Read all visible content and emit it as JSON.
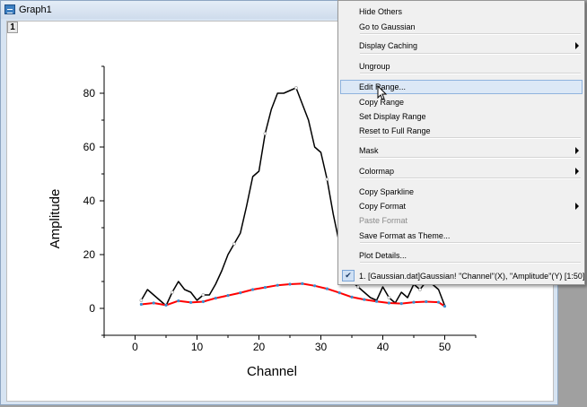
{
  "window": {
    "title": "Graph1",
    "layer_label": "1"
  },
  "plot": {
    "xlabel": "Channel",
    "ylabel": "Amplitude",
    "x_ticks": [
      "0",
      "10",
      "20",
      "30",
      "40",
      "50"
    ],
    "y_ticks": [
      "0",
      "20",
      "40",
      "60",
      "80"
    ],
    "colors": {
      "data_line": "#000000",
      "fit_line": "#ff0000",
      "fit_point": "#3a8fd0"
    }
  },
  "context_menu": {
    "items": [
      {
        "label": "Hide Others"
      },
      {
        "label": "Go to Gaussian"
      },
      {
        "label": "Display Caching",
        "submenu": true
      },
      {
        "label": "Ungroup"
      },
      {
        "label": "Edit Range...",
        "hover": true
      },
      {
        "label": "Copy Range"
      },
      {
        "label": "Set Display Range"
      },
      {
        "label": "Reset to Full Range"
      },
      {
        "label": "Mask",
        "submenu": true
      },
      {
        "label": "Colormap",
        "submenu": true
      },
      {
        "label": "Copy Sparkline"
      },
      {
        "label": "Copy Format",
        "submenu": true
      },
      {
        "label": "Paste Format",
        "disabled": true
      },
      {
        "label": "Save Format as Theme..."
      },
      {
        "label": "Plot Details..."
      },
      {
        "label": "1. [Gaussian.dat]Gaussian! \"Channel\"(X), \"Amplitude\"(Y) [1:50]",
        "checked": true
      }
    ]
  },
  "chart_data": {
    "type": "line",
    "xlabel": "Channel",
    "ylabel": "Amplitude",
    "xlim": [
      -5,
      55
    ],
    "ylim": [
      -10,
      90
    ],
    "series": [
      {
        "x": [
          1,
          2,
          3,
          4,
          5,
          6,
          7,
          8,
          9,
          10,
          11,
          12,
          13,
          14,
          15,
          16,
          17,
          18,
          19,
          20,
          21,
          22,
          23,
          24,
          25,
          26,
          27,
          28,
          29,
          30,
          31,
          32,
          33,
          34,
          35,
          36,
          37,
          38,
          39,
          40,
          41,
          42,
          43,
          44,
          45,
          46,
          47,
          48,
          49,
          50
        ],
        "y": [
          3,
          7,
          5,
          3,
          1,
          6,
          10,
          7,
          6,
          3,
          5,
          5,
          9,
          14,
          20,
          24,
          28,
          38,
          49,
          51,
          65,
          74,
          80,
          80,
          81,
          82,
          76,
          70,
          60,
          58,
          48,
          35,
          24,
          18,
          10,
          8,
          6,
          4,
          3,
          8,
          4,
          2,
          6,
          4,
          9,
          7,
          10,
          9,
          7,
          1
        ]
      },
      {
        "x": [
          1,
          3,
          5,
          7,
          9,
          11,
          13,
          15,
          17,
          19,
          21,
          23,
          25,
          27,
          29,
          31,
          33,
          35,
          37,
          39,
          41,
          43,
          45,
          47,
          49,
          50
        ],
        "y": [
          1.5,
          2.0,
          1.2,
          2.8,
          2.2,
          2.5,
          3.8,
          4.8,
          5.8,
          7.0,
          7.8,
          8.6,
          9.0,
          9.2,
          8.4,
          7.3,
          5.8,
          4.2,
          3.3,
          2.6,
          2.0,
          1.8,
          2.3,
          2.5,
          2.3,
          0.8
        ]
      }
    ]
  }
}
